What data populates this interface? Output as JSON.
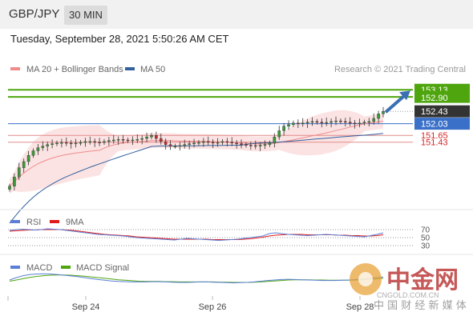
{
  "header": {
    "pair": "GBP/JPY",
    "timeframe": "30 MIN"
  },
  "datetime": "Tuesday, September 28, 2021 5:50:26 AM CET",
  "colors": {
    "ma20": "#f08b8b",
    "ma50": "#33619e",
    "bollinger_fill": "#fbdede",
    "resistance": "#4ea50e",
    "support": "#e08b8b",
    "pivot": "#3a70c8",
    "current": "#333333",
    "rsi": "#5b7fd6",
    "rsi_ma": "#e01b1b",
    "macd": "#5b7fd6",
    "macd_signal": "#4ea50e",
    "arrow": "#3b6fb3"
  },
  "chart_data": [
    {
      "type": "candlestick",
      "panel": "price",
      "legend": [
        {
          "name": "MA 20 + Bollinger Bands",
          "color": "#f08b8b"
        },
        {
          "name": "MA 50",
          "color": "#33619e"
        }
      ],
      "legend_placement": "top-left",
      "credit": "Research © 2021 Trading Central",
      "x_ticks": [
        "Sep 24",
        "Sep 26",
        "Sep 28"
      ],
      "ylim": [
        149.5,
        153.5
      ],
      "price_levels": [
        {
          "value": 153.13,
          "label": "153.13",
          "kind": "resistance"
        },
        {
          "value": 152.9,
          "label": "152.90",
          "kind": "resistance"
        },
        {
          "value": 152.43,
          "label": "152.43",
          "kind": "current"
        },
        {
          "value": 152.03,
          "label": "152.03",
          "kind": "pivot"
        },
        {
          "value": 151.65,
          "label": "151.65",
          "kind": "support"
        },
        {
          "value": 151.43,
          "label": "151.43",
          "kind": "support"
        }
      ],
      "close_series": [
        150.0,
        150.3,
        150.6,
        150.8,
        151.0,
        151.15,
        151.25,
        151.3,
        151.35,
        151.38,
        151.4,
        151.42,
        151.4,
        151.38,
        151.4,
        151.42,
        151.45,
        151.45,
        151.43,
        151.42,
        151.45,
        151.48,
        151.5,
        151.52,
        151.5,
        151.48,
        151.5,
        151.52,
        151.55,
        151.6,
        151.65,
        151.55,
        151.45,
        151.35,
        151.3,
        151.3,
        151.32,
        151.35,
        151.38,
        151.4,
        151.42,
        151.45,
        151.43,
        151.4,
        151.42,
        151.45,
        151.43,
        151.4,
        151.38,
        151.35,
        151.33,
        151.32,
        151.3,
        151.33,
        151.35,
        151.4,
        151.6,
        151.8,
        151.95,
        152.0,
        152.05,
        152.03,
        152.05,
        152.08,
        152.1,
        152.08,
        152.05,
        152.07,
        152.1,
        152.12,
        152.1,
        152.08,
        152.05,
        152.03,
        152.05,
        152.08,
        152.1,
        152.2,
        152.35,
        152.43
      ]
    },
    {
      "type": "line",
      "panel": "rsi",
      "legend": [
        {
          "name": "RSI",
          "color": "#5b7fd6"
        },
        {
          "name": "9MA",
          "color": "#e01b1b"
        }
      ],
      "levels": [
        70,
        50,
        30
      ],
      "ylim": [
        0,
        100
      ],
      "rsi": [
        68,
        70,
        71,
        70,
        69,
        70,
        72,
        71,
        70,
        68,
        66,
        64,
        62,
        60,
        58,
        57,
        56,
        55,
        54,
        52,
        50,
        49,
        48,
        47,
        46,
        45,
        44,
        46,
        48,
        47,
        46,
        45,
        44,
        43,
        44,
        45,
        46,
        48,
        50,
        52,
        54,
        60,
        62,
        60,
        58,
        57,
        56,
        55,
        56,
        57,
        58,
        57,
        56,
        55,
        54,
        53,
        52,
        55,
        58,
        62
      ],
      "ma": [
        66,
        67,
        68,
        69,
        69,
        70,
        70,
        70,
        70,
        69,
        68,
        66,
        64,
        62,
        60,
        58,
        57,
        56,
        55,
        54,
        52,
        51,
        50,
        49,
        48,
        47,
        46,
        46,
        46,
        46,
        46,
        46,
        45,
        45,
        45,
        45,
        45,
        46,
        47,
        49,
        51,
        54,
        56,
        57,
        58,
        58,
        58,
        57,
        57,
        57,
        57,
        57,
        56,
        56,
        55,
        55,
        54,
        54,
        55,
        57
      ]
    },
    {
      "type": "line",
      "panel": "macd",
      "legend": [
        {
          "name": "MACD",
          "color": "#5b7fd6"
        },
        {
          "name": "MACD Signal",
          "color": "#4ea50e"
        }
      ],
      "ylim": [
        -0.5,
        0.5
      ],
      "macd": [
        0.1,
        0.2,
        0.28,
        0.33,
        0.35,
        0.36,
        0.35,
        0.33,
        0.3,
        0.27,
        0.24,
        0.2,
        0.16,
        0.12,
        0.09,
        0.06,
        0.04,
        0.03,
        0.02,
        0.02,
        0.02,
        0.03,
        0.03,
        0.02,
        0.01,
        0.0,
        0.0,
        0.01,
        0.02,
        0.02,
        0.01,
        0.0,
        -0.01,
        -0.02,
        -0.01,
        0.0,
        0.02,
        0.05,
        0.08,
        0.1,
        0.12,
        0.13,
        0.12,
        0.11,
        0.1,
        0.09,
        0.08,
        0.08,
        0.08,
        0.09,
        0.1,
        0.12,
        0.14,
        0.17,
        0.2,
        0.22
      ],
      "signal": [
        0.05,
        0.1,
        0.16,
        0.21,
        0.25,
        0.28,
        0.3,
        0.31,
        0.31,
        0.3,
        0.28,
        0.26,
        0.23,
        0.2,
        0.17,
        0.14,
        0.11,
        0.09,
        0.07,
        0.05,
        0.04,
        0.04,
        0.04,
        0.03,
        0.03,
        0.02,
        0.02,
        0.02,
        0.02,
        0.02,
        0.02,
        0.01,
        0.01,
        0.0,
        0.0,
        0.0,
        0.01,
        0.02,
        0.04,
        0.06,
        0.08,
        0.1,
        0.11,
        0.11,
        0.11,
        0.1,
        0.1,
        0.09,
        0.09,
        0.09,
        0.09,
        0.1,
        0.11,
        0.13,
        0.15,
        0.17
      ]
    }
  ],
  "watermark": {
    "big": "中金网",
    "url": "CNGOLD.COM.CN",
    "sub": "中 国 财 经 新 媒 体"
  }
}
